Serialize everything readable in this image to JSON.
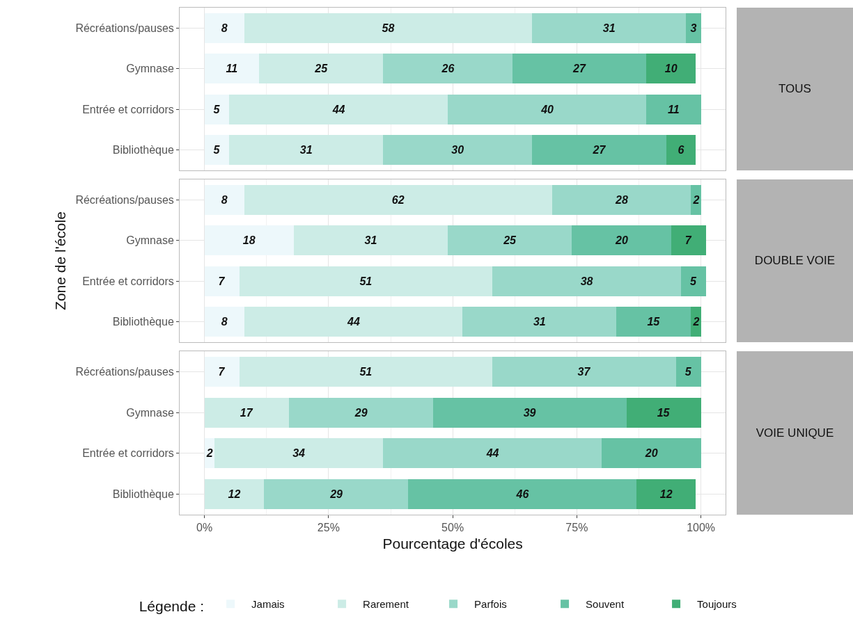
{
  "chart_data": [
    {
      "type": "bar",
      "orientation": "horizontal",
      "stacked": true,
      "annotations": [
        "TOUS"
      ],
      "categories": [
        "Récréations/pauses",
        "Gymnase",
        "Entrée et corridors",
        "Bibliothèque"
      ],
      "series": [
        {
          "color": "#edf8fb",
          "values": [
            8,
            11,
            5,
            5
          ]
        },
        {
          "color": "#ccece6",
          "values": [
            58,
            25,
            44,
            31
          ]
        },
        {
          "color": "#99d8c9",
          "values": [
            31,
            26,
            40,
            30
          ]
        },
        {
          "color": "#66c2a4",
          "values": [
            3,
            27,
            11,
            27
          ]
        },
        {
          "color": "#41ae76",
          "values": [
            null,
            10,
            null,
            6
          ]
        }
      ],
      "xlim": [
        -5,
        105
      ],
      "xticks": [
        0,
        25,
        50,
        75,
        100
      ],
      "data_labels": true,
      "grid": true,
      "legend": false,
      "tick_labels": "y"
    },
    {
      "type": "bar",
      "orientation": "horizontal",
      "stacked": true,
      "annotations": [
        "DOUBLE VOIE"
      ],
      "ylabel": "Zone de l'école",
      "categories": [
        "Récréations/pauses",
        "Gymnase",
        "Entrée et corridors",
        "Bibliothèque"
      ],
      "series": [
        {
          "color": "#edf8fb",
          "values": [
            8,
            18,
            7,
            8
          ]
        },
        {
          "color": "#ccece6",
          "values": [
            62,
            31,
            51,
            44
          ]
        },
        {
          "color": "#99d8c9",
          "values": [
            28,
            25,
            38,
            31
          ]
        },
        {
          "color": "#66c2a4",
          "values": [
            2,
            20,
            5,
            15
          ]
        },
        {
          "color": "#41ae76",
          "values": [
            null,
            7,
            null,
            2
          ]
        }
      ],
      "xlim": [
        -5,
        105
      ],
      "xticks": [
        0,
        25,
        50,
        75,
        100
      ],
      "data_labels": true,
      "grid": true,
      "legend": false,
      "tick_labels": "y"
    },
    {
      "type": "bar",
      "orientation": "horizontal",
      "stacked": true,
      "annotations": [
        "VOIE UNIQUE"
      ],
      "xlabel": "Pourcentage d'écoles",
      "legend_title": "Légende :",
      "categories": [
        "Récréations/pauses",
        "Gymnase",
        "Entrée et corridors",
        "Bibliothèque"
      ],
      "series": [
        {
          "name": "Jamais",
          "color": "#edf8fb",
          "values": [
            7,
            null,
            2,
            null
          ]
        },
        {
          "name": "Rarement",
          "color": "#ccece6",
          "values": [
            51,
            17,
            34,
            12
          ]
        },
        {
          "name": "Parfois",
          "color": "#99d8c9",
          "values": [
            37,
            29,
            44,
            29
          ]
        },
        {
          "name": "Souvent",
          "color": "#66c2a4",
          "values": [
            5,
            39,
            20,
            46
          ]
        },
        {
          "name": "Toujours",
          "color": "#41ae76",
          "values": [
            null,
            15,
            null,
            12
          ]
        }
      ],
      "xlim": [
        -5,
        105
      ],
      "xticks": [
        {
          "value": 0,
          "label": "0%"
        },
        {
          "value": 25,
          "label": "25%"
        },
        {
          "value": 50,
          "label": "50%"
        },
        {
          "value": 75,
          "label": "75%"
        },
        {
          "value": 100,
          "label": "100%"
        }
      ],
      "data_labels": true,
      "grid": true,
      "legend": "bottom"
    }
  ]
}
